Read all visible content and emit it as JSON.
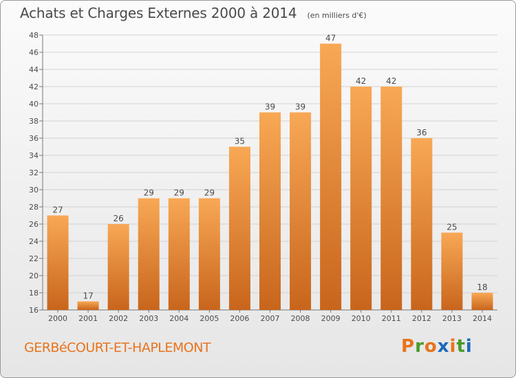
{
  "header": {
    "title": "Achats et Charges Externes 2000 à 2014",
    "subtitle": "(en milliers d'€)"
  },
  "footer": {
    "commune": "GERBéCOURT-ET-HAPLEMONT",
    "brand": "Proxiti"
  },
  "colors": {
    "bar_light": "#f8a855",
    "bar_dark": "#c8651c",
    "text": "#4a4a4a",
    "commune": "#e8731c",
    "logo_letters": [
      "#e8731c",
      "#4a9a2a",
      "#e8731c",
      "#1a6ab8",
      "#e8731c",
      "#4a9a2a",
      "#1a6ab8"
    ]
  },
  "chart_data": {
    "type": "bar",
    "categories": [
      "2000",
      "2001",
      "2002",
      "2003",
      "2004",
      "2005",
      "2006",
      "2007",
      "2008",
      "2009",
      "2010",
      "2011",
      "2012",
      "2013",
      "2014"
    ],
    "values": [
      27,
      17,
      26,
      29,
      29,
      29,
      35,
      39,
      39,
      47,
      42,
      42,
      36,
      25,
      18
    ],
    "ylim": [
      16,
      48
    ],
    "yticks": [
      16,
      18,
      20,
      22,
      24,
      26,
      28,
      30,
      32,
      34,
      36,
      38,
      40,
      42,
      44,
      46,
      48
    ],
    "grid": true,
    "data_labels": true
  }
}
